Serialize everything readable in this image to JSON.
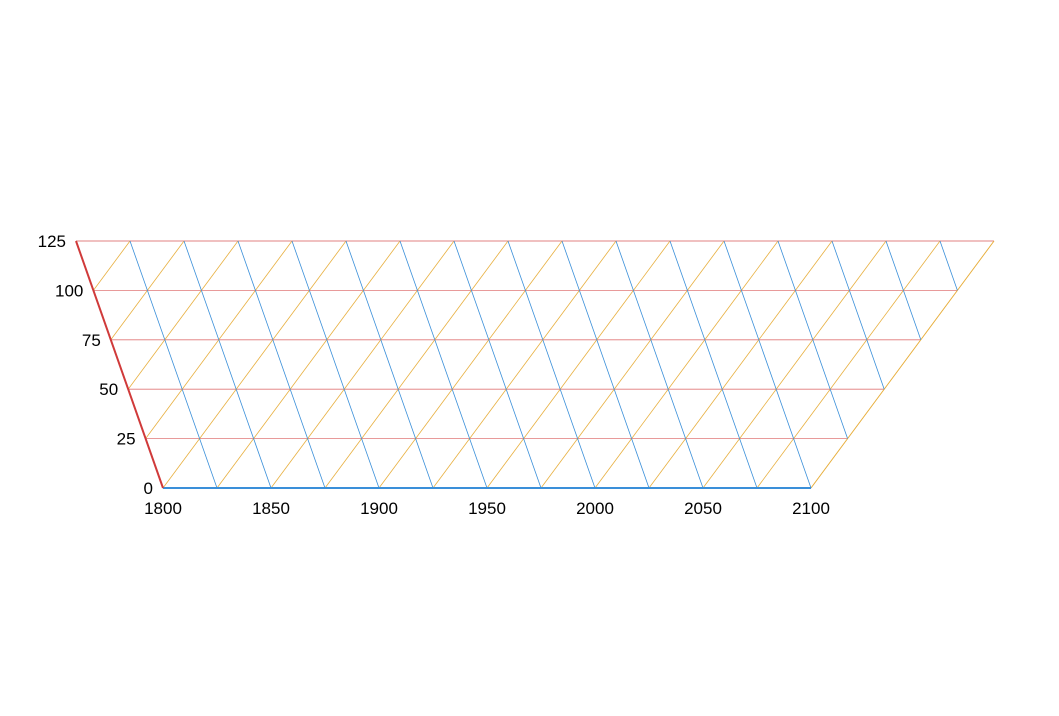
{
  "chart_data": {
    "type": "ternary-grid",
    "title": "",
    "xlabel": "",
    "ylabel": "",
    "grid": true,
    "x_axis": {
      "range": [
        1800,
        2100
      ],
      "ticks": [
        1800,
        1850,
        1900,
        1950,
        2000,
        2050,
        2100
      ],
      "tick_labels": [
        "1800",
        "1850",
        "1900",
        "1950",
        "2000",
        "2050",
        "2100"
      ],
      "minor_step": 25,
      "color": "#3a8fd9"
    },
    "y_axis": {
      "range": [
        0,
        125
      ],
      "ticks": [
        0,
        25,
        50,
        75,
        100,
        125
      ],
      "tick_labels": [
        "0",
        "25",
        "50",
        "75",
        "100",
        "125"
      ],
      "color": "#d03a3a"
    },
    "grid_colors": {
      "horizontal": "#e07878",
      "ascending": "#e8b040",
      "descending": "#3a8fd9"
    }
  }
}
